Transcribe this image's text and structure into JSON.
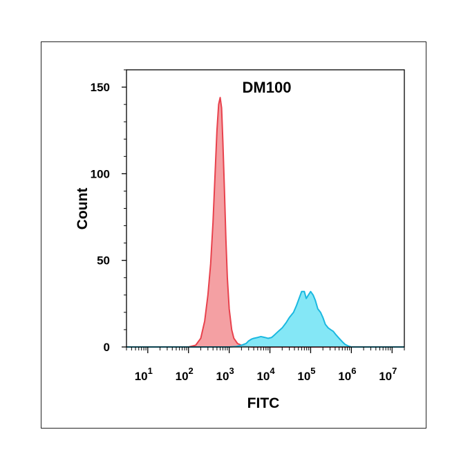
{
  "chart_data": {
    "type": "area",
    "title": "DM100",
    "xlabel": "FITC",
    "ylabel": "Count",
    "x_scale": "log10",
    "xlim": [
      3,
      20000000
    ],
    "ylim": [
      0,
      160
    ],
    "x_ticks": [
      {
        "base": "10",
        "exp": "1"
      },
      {
        "base": "10",
        "exp": "2"
      },
      {
        "base": "10",
        "exp": "3"
      },
      {
        "base": "10",
        "exp": "4"
      },
      {
        "base": "10",
        "exp": "5"
      },
      {
        "base": "10",
        "exp": "6"
      },
      {
        "base": "10",
        "exp": "7"
      }
    ],
    "y_ticks": [
      "0",
      "50",
      "100",
      "150"
    ],
    "grid": false,
    "series": [
      {
        "color_fill": "#f4a0a3",
        "color_line": "#e8414c",
        "points": [
          [
            3,
            0
          ],
          [
            100,
            0
          ],
          [
            150,
            1
          ],
          [
            200,
            5
          ],
          [
            250,
            15
          ],
          [
            300,
            30
          ],
          [
            350,
            48
          ],
          [
            400,
            72
          ],
          [
            450,
            100
          ],
          [
            500,
            125
          ],
          [
            550,
            140
          ],
          [
            600,
            144
          ],
          [
            650,
            138
          ],
          [
            700,
            118
          ],
          [
            760,
            92
          ],
          [
            830,
            62
          ],
          [
            900,
            40
          ],
          [
            1000,
            22
          ],
          [
            1150,
            10
          ],
          [
            1300,
            5
          ],
          [
            1600,
            2
          ],
          [
            2000,
            1
          ],
          [
            2600,
            0.5
          ],
          [
            3500,
            0
          ],
          [
            20000000,
            0
          ]
        ]
      },
      {
        "color_fill": "#6ee3f5",
        "color_line": "#1ab8e0",
        "points": [
          [
            3,
            0
          ],
          [
            1000,
            0
          ],
          [
            1500,
            0.3
          ],
          [
            2000,
            1
          ],
          [
            2600,
            2
          ],
          [
            3000,
            3.5
          ],
          [
            3500,
            4.5
          ],
          [
            4000,
            5
          ],
          [
            5000,
            5.5
          ],
          [
            6000,
            6
          ],
          [
            7500,
            5.5
          ],
          [
            9000,
            5
          ],
          [
            11000,
            5.5
          ],
          [
            13000,
            7
          ],
          [
            16000,
            9
          ],
          [
            20000,
            11
          ],
          [
            25000,
            14
          ],
          [
            30000,
            17
          ],
          [
            38000,
            20
          ],
          [
            45000,
            24
          ],
          [
            52000,
            28
          ],
          [
            60000,
            32
          ],
          [
            70000,
            32
          ],
          [
            78000,
            28
          ],
          [
            88000,
            30
          ],
          [
            100000,
            32
          ],
          [
            115000,
            30
          ],
          [
            130000,
            27
          ],
          [
            150000,
            22
          ],
          [
            175000,
            20
          ],
          [
            200000,
            17
          ],
          [
            230000,
            13
          ],
          [
            270000,
            11
          ],
          [
            310000,
            10
          ],
          [
            360000,
            9
          ],
          [
            420000,
            7
          ],
          [
            500000,
            5
          ],
          [
            600000,
            3
          ],
          [
            700000,
            1.5
          ],
          [
            850000,
            0.5
          ],
          [
            1000000,
            0
          ],
          [
            20000000,
            0
          ]
        ]
      }
    ]
  }
}
